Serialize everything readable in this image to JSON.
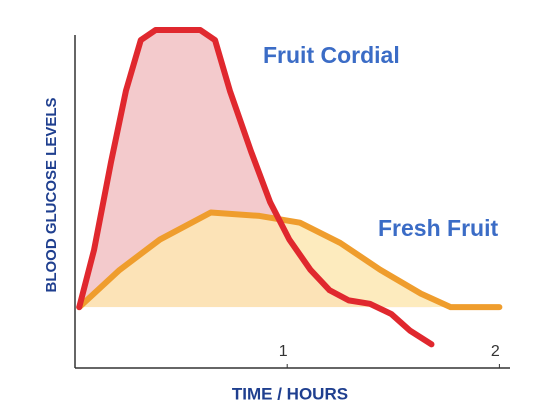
{
  "chart_data": {
    "type": "line",
    "xlabel": "TIME / HOURS",
    "ylabel": "BLOOD GLUCOSE LEVELS",
    "xlim": [
      0,
      2.05
    ],
    "ylim": [
      0,
      100
    ],
    "xticks": [
      1,
      2
    ],
    "series": [
      {
        "name": "Fruit Cordial",
        "color": "#e0282e",
        "fill_color": "#f2c4c6",
        "x": [
          0.02,
          0.09,
          0.17,
          0.24,
          0.31,
          0.38,
          0.59,
          0.66,
          0.73,
          0.83,
          0.92,
          1.01,
          1.11,
          1.2,
          1.29,
          1.39,
          1.49,
          1.58,
          1.68
        ],
        "values": [
          18,
          35,
          61,
          82,
          97,
          100,
          100,
          97,
          82,
          64,
          49,
          38,
          29,
          23,
          20,
          19,
          16,
          11,
          7
        ]
      },
      {
        "name": "Fresh Fruit",
        "color": "#ef9d2d",
        "fill_color": "#fde7b3",
        "x": [
          0.02,
          0.21,
          0.4,
          0.64,
          0.87,
          1.06,
          1.25,
          1.44,
          1.63,
          1.77,
          2.0
        ],
        "values": [
          18,
          29,
          38,
          46,
          45,
          43,
          37,
          29,
          22,
          18,
          18
        ]
      }
    ],
    "label_color": "#3b6cc6",
    "axis_label_color": "#1f3f8f"
  }
}
